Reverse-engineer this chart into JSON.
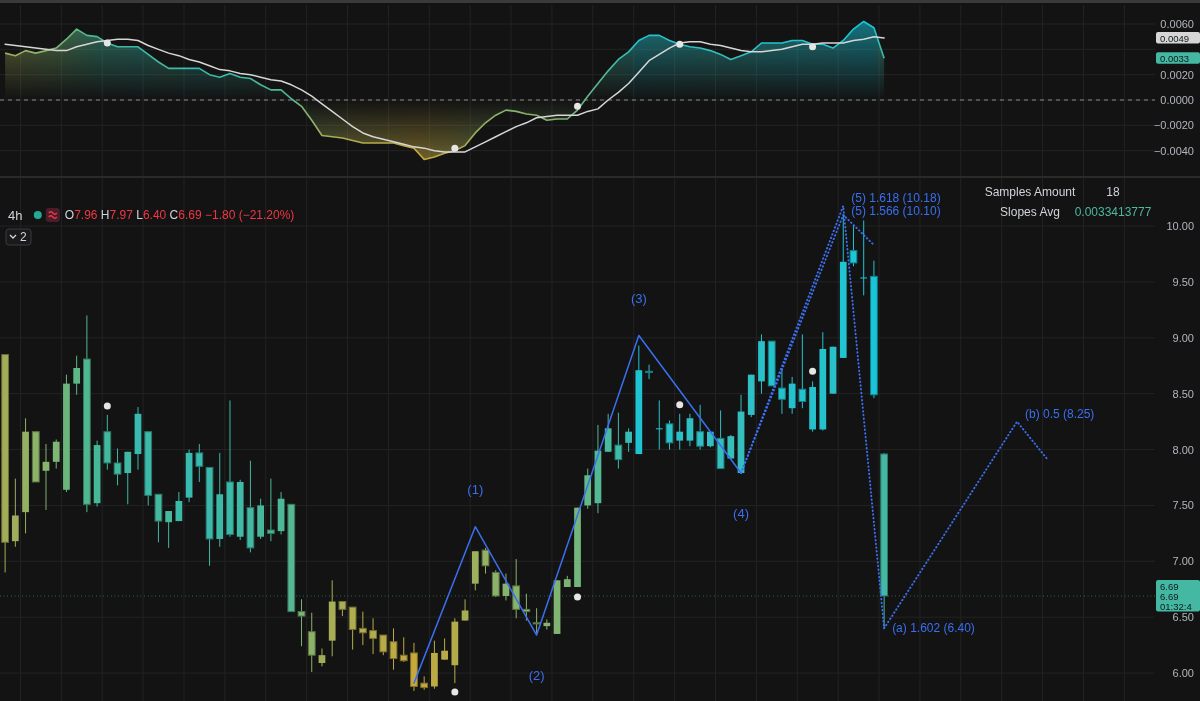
{
  "chart_data": [
    {
      "type": "area",
      "categories": [
        null,
        null,
        null,
        null,
        null,
        null,
        null,
        null,
        null,
        null,
        null,
        null,
        null,
        null,
        null,
        null,
        null,
        null,
        null,
        null,
        null,
        null,
        null,
        null,
        null,
        null,
        null,
        null,
        null,
        null,
        null,
        null,
        null,
        null,
        null,
        null,
        null,
        null,
        null,
        null,
        null,
        null,
        null,
        null,
        null,
        null,
        null,
        null,
        null,
        null,
        null,
        null,
        null,
        null,
        null,
        null,
        null,
        null,
        null,
        null,
        null,
        null,
        null,
        null,
        null,
        null,
        null,
        null,
        null,
        null,
        null,
        null,
        null,
        null,
        null,
        null,
        null,
        null,
        null,
        null,
        null,
        null,
        null,
        null,
        null,
        null,
        null
      ],
      "series": [
        {
          "type": "area",
          "colors": [
            "#a3ad58",
            "#a0ae5c",
            "#94b062",
            "#8cb268",
            "#84b46e",
            "#7cb574",
            "#6cb67e",
            "#5eb886",
            "#50b890",
            "#46b898",
            "#42b89e",
            "#42b8a0",
            "#40b8a4",
            "#38bab0",
            "#3cb9a8",
            "#44b8a0",
            "#46b89e",
            "#3cbaa8",
            "#38bab0",
            "#38bab0",
            "#3cb9aa",
            "#3eb9a8",
            "#3cbaa8",
            "#40b9a6",
            "#44b8a2",
            "#48b89c",
            "#4cb898",
            "#4cb898",
            "#56b792",
            "#7cb474",
            "#8cb168",
            "#a0ae5a",
            "#a6ae58",
            "#acad54",
            "#b0ac50",
            "#b4ab4c",
            "#b4ab4c",
            "#b8aa48",
            "#bcaa44",
            "#c0a942",
            "#c6a83c",
            "#c4a83e",
            "#bcaa44",
            "#b8aa48",
            "#b4ab4c",
            "#a8ad54",
            "#9cb05e",
            "#94b164",
            "#8cb26a",
            "#88b36c",
            "#88b36c",
            "#8cb26a",
            "#8cb26a",
            "#88b36c",
            "#80b472",
            "#7cb476",
            "#74b57c",
            "#64b786",
            "#52b994",
            "#48baa0",
            "#3ebbaa",
            "#36bcb4",
            "#1ec4d2",
            "#26c2cc",
            "#28c1ca",
            "#2ac1c8",
            "#2cc0c6",
            "#2ec0c4",
            "#30bfc2",
            "#32bfc0",
            "#34bebe",
            "#36beba",
            "#34bebe",
            "#2ec0c4",
            "#28c1ca",
            "#26c2cc",
            "#26c2cc",
            "#24c2ce",
            "#24c2ce",
            "#26c2cc",
            "#26c2cc",
            "#28c1ca",
            "#20c4d2",
            "#1ac6d8",
            "#18c6da",
            "#1ac5d8",
            "#44b8a2"
          ],
          "values": [
            0.0037,
            0.0035,
            0.0039,
            0.0037,
            0.0039,
            0.0041,
            0.0048,
            0.0056,
            0.0051,
            0.005,
            0.0045,
            0.0042,
            0.0042,
            0.0042,
            0.0036,
            0.003,
            0.0025,
            0.0025,
            0.0025,
            0.0025,
            0.002,
            0.0018,
            0.0021,
            0.0018,
            0.0017,
            0.0012,
            0.0008,
            0.0008,
            0.0001,
            -0.0005,
            -0.0016,
            -0.0028,
            -0.0029,
            -0.003,
            -0.0032,
            -0.0034,
            -0.0034,
            -0.0034,
            -0.0034,
            -0.0036,
            -0.0038,
            -0.0047,
            -0.0045,
            -0.0042,
            -0.004,
            -0.0036,
            -0.0026,
            -0.0018,
            -0.0012,
            -0.0008,
            -0.0009,
            -0.0011,
            -0.0012,
            -0.0016,
            -0.0015,
            -0.0015,
            -0.0008,
            0.0003,
            0.0013,
            0.0023,
            0.0032,
            0.0038,
            0.0047,
            0.0051,
            0.0051,
            0.0047,
            0.0044,
            0.0042,
            0.0041,
            0.0039,
            0.0036,
            0.0032,
            0.0035,
            0.0038,
            0.0045,
            0.0045,
            0.0045,
            0.0047,
            0.0047,
            0.0044,
            0.0044,
            0.0041,
            0.0047,
            0.0056,
            0.0062,
            0.0057,
            0.0033
          ]
        },
        {
          "type": "line",
          "color": "#d6d6d6",
          "values": [
            0.0044,
            0.0043,
            0.0042,
            0.0041,
            0.004,
            0.0039,
            0.0039,
            0.0042,
            0.0044,
            0.0046,
            0.0047,
            0.0048,
            0.0048,
            0.0047,
            0.0043,
            0.004,
            0.0037,
            0.0035,
            0.0032,
            0.003,
            0.0027,
            0.0024,
            0.0023,
            0.0021,
            0.002,
            0.0018,
            0.0016,
            0.0015,
            0.0012,
            0.0008,
            0.0003,
            -0.0003,
            -0.0009,
            -0.0015,
            -0.0021,
            -0.0026,
            -0.0029,
            -0.0031,
            -0.0033,
            -0.0035,
            -0.0037,
            -0.0038,
            -0.004,
            -0.0041,
            -0.0041,
            -0.0041,
            -0.0037,
            -0.0033,
            -0.0029,
            -0.0025,
            -0.0021,
            -0.0018,
            -0.0014,
            -0.0013,
            -0.0012,
            -0.0012,
            -0.0012,
            -0.0009,
            -0.0007,
            0,
            0.0006,
            0.0013,
            0.0022,
            0.0031,
            0.0036,
            0.0041,
            0.0045,
            0.0046,
            0.0046,
            0.0044,
            0.0043,
            0.0041,
            0.0039,
            0.0038,
            0.0038,
            0.0039,
            0.004,
            0.0042,
            0.0044,
            0.0044,
            0.0045,
            0.0045,
            0.0045,
            0.0047,
            0.0048,
            0.005,
            0.0049
          ]
        },
        {
          "type": "scatter",
          "color": "#e6e6e6",
          "marker": "circle",
          "values": [
            null,
            null,
            null,
            null,
            null,
            null,
            null,
            null,
            null,
            null,
            0.0045,
            null,
            null,
            null,
            null,
            null,
            null,
            null,
            null,
            null,
            null,
            null,
            null,
            null,
            null,
            null,
            null,
            null,
            null,
            null,
            null,
            null,
            null,
            null,
            null,
            null,
            null,
            null,
            null,
            null,
            null,
            null,
            null,
            null,
            -0.0038,
            null,
            null,
            null,
            null,
            null,
            null,
            null,
            null,
            null,
            null,
            null,
            -0.0005,
            null,
            null,
            null,
            null,
            null,
            null,
            null,
            null,
            null,
            0.0044,
            null,
            null,
            null,
            null,
            null,
            null,
            null,
            null,
            null,
            null,
            null,
            null,
            0.0042,
            null,
            null,
            null,
            null,
            null,
            null,
            null
          ]
        }
      ],
      "ylim": [
        -0.006,
        0.0075
      ],
      "yticks": [
        {
          "value": -0.004,
          "label": "−0.0040"
        },
        {
          "value": -0.002,
          "label": "−0.0020"
        },
        {
          "value": 0,
          "label": "0.0000"
        },
        {
          "value": 0.002,
          "label": "0.0020"
        },
        {
          "value": 0.004,
          "label": null
        },
        {
          "value": 0.006,
          "label": "0.0060"
        }
      ],
      "grid": true,
      "tick_labels": "y",
      "ref_lines": [
        {
          "axis": "y",
          "value": 0,
          "color": "#8a8a8a",
          "line_style": "dashed"
        }
      ],
      "annotations": [
        "0.0049",
        "0.0033"
      ]
    },
    {
      "type": "candlestick",
      "title": "4h",
      "subtitle": "O7.96 H7.97 L6.40 C6.69 −1.80 (−21.20%)",
      "categories": [
        null,
        null,
        null,
        null,
        null,
        null,
        null,
        null,
        null,
        null,
        null,
        null,
        null,
        null,
        null,
        null,
        null,
        null,
        null,
        null,
        null,
        null,
        null,
        null,
        null,
        null,
        null,
        null,
        null,
        null,
        null,
        null,
        null,
        null,
        null,
        null,
        null,
        null,
        null,
        null,
        null,
        null,
        null,
        null,
        null,
        null,
        null,
        null,
        null,
        null,
        null,
        null,
        null,
        null,
        null,
        null,
        null,
        null,
        null,
        null,
        null,
        null,
        null,
        null,
        null,
        null,
        null,
        null,
        null,
        null,
        null,
        null,
        null,
        null,
        null,
        null,
        null,
        null,
        null,
        null,
        null,
        null,
        null,
        null,
        null,
        null,
        null,
        null,
        null,
        null,
        null,
        null,
        null,
        null,
        null,
        null,
        null,
        null,
        null,
        null,
        null,
        null,
        null,
        null,
        null,
        null,
        null,
        null,
        null,
        null,
        null,
        null,
        null
      ],
      "ohlc": [
        [
          8.85,
          8.85,
          6.9,
          7.17
        ],
        [
          7.18,
          7.74,
          7.13,
          7.41
        ],
        [
          7.44,
          8.28,
          7.25,
          8.16
        ],
        [
          8.16,
          8.16,
          7.71,
          7.71
        ],
        [
          7.81,
          8.05,
          7.46,
          7.89
        ],
        [
          7.89,
          8.09,
          7.83,
          8.07
        ],
        [
          7.64,
          8.67,
          7.62,
          8.59
        ],
        [
          8.59,
          8.84,
          8.49,
          8.73
        ],
        [
          8.81,
          9.2,
          7.44,
          7.51
        ],
        [
          7.52,
          8.08,
          7.49,
          8.04
        ],
        [
          8.16,
          8.31,
          7.82,
          7.88
        ],
        [
          7.88,
          8.01,
          7.68,
          7.78
        ],
        [
          7.79,
          7.98,
          7.51,
          7.98
        ],
        [
          7.96,
          8.38,
          7.82,
          8.32
        ],
        [
          8.16,
          8.16,
          7.5,
          7.59
        ],
        [
          7.6,
          7.6,
          7.17,
          7.36
        ],
        [
          7.35,
          7.45,
          7.12,
          7.45
        ],
        [
          7.36,
          7.62,
          7.36,
          7.54
        ],
        [
          7.57,
          8.0,
          7.53,
          7.97
        ],
        [
          7.97,
          8.05,
          7.71,
          7.85
        ],
        [
          7.84,
          7.84,
          6.96,
          7.2
        ],
        [
          7.2,
          7.97,
          7.13,
          7.6
        ],
        [
          7.71,
          8.44,
          7.22,
          7.24
        ],
        [
          7.22,
          7.73,
          7.19,
          7.71
        ],
        [
          7.48,
          7.9,
          7.08,
          7.12
        ],
        [
          7.22,
          7.56,
          7.2,
          7.5
        ],
        [
          7.28,
          7.74,
          7.18,
          7.25
        ],
        [
          7.27,
          7.62,
          7.24,
          7.56
        ],
        [
          7.51,
          7.51,
          6.55,
          6.55
        ],
        [
          6.55,
          6.66,
          6.24,
          6.51
        ],
        [
          6.37,
          6.54,
          6.01,
          6.16
        ],
        [
          6.09,
          6.22,
          6.06,
          6.16
        ],
        [
          6.29,
          6.83,
          6.15,
          6.64
        ],
        [
          6.64,
          6.64,
          6.51,
          6.57
        ],
        [
          6.59,
          6.59,
          6.21,
          6.39
        ],
        [
          6.4,
          6.55,
          6.25,
          6.36
        ],
        [
          6.38,
          6.49,
          6.17,
          6.31
        ],
        [
          6.34,
          6.34,
          6.16,
          6.19
        ],
        [
          6.28,
          6.4,
          6.03,
          6.13
        ],
        [
          6.16,
          6.32,
          6.1,
          6.11
        ],
        [
          6.18,
          6.27,
          5.84,
          5.88
        ],
        [
          5.91,
          5.97,
          5.85,
          5.87
        ],
        [
          5.88,
          6.29,
          5.86,
          6.18
        ],
        [
          6.12,
          6.31,
          6.12,
          6.2
        ],
        [
          6.07,
          6.49,
          5.91,
          6.46
        ],
        [
          6.47,
          6.66,
          6.47,
          6.56
        ],
        [
          6.8,
          7.09,
          6.74,
          7.09
        ],
        [
          7.1,
          7.12,
          6.89,
          6.96
        ],
        [
          6.9,
          6.92,
          6.68,
          6.69
        ],
        [
          6.69,
          6.89,
          6.65,
          6.8
        ],
        [
          6.78,
          7.02,
          6.49,
          6.57
        ],
        [
          6.57,
          6.71,
          6.47,
          6.55
        ],
        [
          6.45,
          6.58,
          6.36,
          6.44
        ],
        [
          6.42,
          6.48,
          6.39,
          6.45
        ],
        [
          6.35,
          6.83,
          6.35,
          6.83
        ],
        [
          6.77,
          6.87,
          6.77,
          6.84
        ],
        [
          6.77,
          7.48,
          6.77,
          7.48
        ],
        [
          7.5,
          7.83,
          7.47,
          7.77
        ],
        [
          7.52,
          8.22,
          7.43,
          7.99
        ],
        [
          7.98,
          8.32,
          7.98,
          8.19
        ],
        [
          8.04,
          8.33,
          7.83,
          7.91
        ],
        [
          8.06,
          8.19,
          7.98,
          8.16
        ],
        [
          7.96,
          8.93,
          7.96,
          8.71
        ],
        [
          8.7,
          8.76,
          8.63,
          8.69
        ],
        [
          8.19,
          8.44,
          8.0,
          8.19
        ],
        [
          8.23,
          8.26,
          8.0,
          8.06
        ],
        [
          8.08,
          8.32,
          8.0,
          8.16
        ],
        [
          8.08,
          8.32,
          8.03,
          8.28
        ],
        [
          8.16,
          8.4,
          8.0,
          8.03
        ],
        [
          8.03,
          8.16,
          8.02,
          8.16
        ],
        [
          8.1,
          8.35,
          7.83,
          7.83
        ],
        [
          7.92,
          8.13,
          7.92,
          8.12
        ],
        [
          7.79,
          8.49,
          7.79,
          8.34
        ],
        [
          8.31,
          8.67,
          8.29,
          8.67
        ],
        [
          8.61,
          9.03,
          8.5,
          8.97
        ],
        [
          8.97,
          8.97,
          8.57,
          8.57
        ],
        [
          8.55,
          8.73,
          8.32,
          8.45
        ],
        [
          8.37,
          8.65,
          8.32,
          8.59
        ],
        [
          8.54,
          9.03,
          8.37,
          8.43
        ],
        [
          8.18,
          8.61,
          8.16,
          8.56
        ],
        [
          8.18,
          9.05,
          8.17,
          8.9
        ],
        [
          8.5,
          8.92,
          8.5,
          8.92
        ],
        [
          8.82,
          10.1,
          8.82,
          9.68
        ],
        [
          9.78,
          10.01,
          9.64,
          9.67
        ],
        [
          9.54,
          10.05,
          9.38,
          9.54
        ],
        [
          9.55,
          9.69,
          8.46,
          8.49
        ],
        [
          7.96,
          7.97,
          6.4,
          6.69
        ],
        null,
        null,
        null,
        null,
        null,
        null,
        null,
        null,
        null,
        null,
        null,
        null,
        null,
        null,
        null,
        null,
        null,
        null,
        null,
        null,
        null,
        null,
        null,
        null,
        null,
        null
      ],
      "colors": [
        "#a3ad58",
        "#a0ae5c",
        "#94b062",
        "#8cb268",
        "#84b46e",
        "#7cb574",
        "#6cb67e",
        "#5eb886",
        "#50b890",
        "#46b898",
        "#42b89e",
        "#42b8a0",
        "#40b8a4",
        "#38bab0",
        "#3cb9a8",
        "#44b8a0",
        "#46b89e",
        "#3cbaa8",
        "#38bab0",
        "#38bab0",
        "#3cb9aa",
        "#3eb9a8",
        "#3cbaa8",
        "#40b9a6",
        "#44b8a2",
        "#48b89c",
        "#4cb898",
        "#4cb898",
        "#56b792",
        "#7cb474",
        "#8cb168",
        "#a0ae5a",
        "#a6ae58",
        "#acad54",
        "#b0ac50",
        "#b4ab4c",
        "#b4ab4c",
        "#b8aa48",
        "#bcaa44",
        "#c0a942",
        "#c6a83c",
        "#c4a83e",
        "#bcaa44",
        "#b8aa48",
        "#b4ab4c",
        "#a8ad54",
        "#9cb05e",
        "#94b164",
        "#8cb26a",
        "#88b36c",
        "#88b36c",
        "#8cb26a",
        "#8cb26a",
        "#88b36c",
        "#80b472",
        "#7cb476",
        "#74b57c",
        "#64b786",
        "#52b994",
        "#48baa0",
        "#3ebbaa",
        "#36bcb4",
        "#1ec4d2",
        "#26c2cc",
        "#28c1ca",
        "#2ac1c8",
        "#2cc0c6",
        "#2ec0c4",
        "#30bfc2",
        "#32bfc0",
        "#34bebe",
        "#36beba",
        "#34bebe",
        "#2ec0c4",
        "#28c1ca",
        "#26c2cc",
        "#26c2cc",
        "#24c2ce",
        "#24c2ce",
        "#26c2cc",
        "#26c2cc",
        "#28c1ca",
        "#20c4d2",
        "#1ac6d8",
        "#18c6da",
        "#1ac5d8",
        "#44b8a2",
        null,
        null,
        null,
        null,
        null,
        null,
        null,
        null,
        null,
        null,
        null,
        null,
        null,
        null,
        null,
        null,
        null,
        null,
        null,
        null,
        null,
        null,
        null,
        null,
        null,
        null
      ],
      "series": [
        {
          "type": "line",
          "color": "#3a6ff0",
          "line_style": "solid",
          "values": [
            null,
            null,
            null,
            null,
            null,
            null,
            null,
            null,
            null,
            null,
            null,
            null,
            null,
            null,
            null,
            null,
            null,
            null,
            null,
            null,
            null,
            null,
            null,
            null,
            null,
            null,
            null,
            null,
            null,
            null,
            null,
            null,
            null,
            null,
            null,
            null,
            null,
            null,
            null,
            null,
            5.91,
            null,
            null,
            null,
            null,
            null,
            7.31,
            null,
            null,
            null,
            null,
            null,
            6.34,
            null,
            null,
            null,
            null,
            null,
            null,
            null,
            null,
            null,
            9.02,
            null,
            null,
            null,
            null,
            null,
            null,
            null,
            null,
            null,
            7.79,
            null,
            null,
            null,
            null,
            null,
            null,
            null,
            null,
            null,
            null,
            null,
            null,
            null,
            null,
            null,
            null,
            null,
            null,
            null,
            null,
            null,
            null,
            null,
            null,
            null,
            null,
            null,
            null,
            null,
            null,
            null,
            null,
            null,
            null,
            null,
            null,
            null,
            null,
            null,
            null
          ]
        },
        {
          "type": "line",
          "color": "#3a6ff0",
          "line_style": "dotted",
          "values": [
            null,
            null,
            null,
            null,
            null,
            null,
            null,
            null,
            null,
            null,
            null,
            null,
            null,
            null,
            null,
            null,
            null,
            null,
            null,
            null,
            null,
            null,
            null,
            null,
            null,
            null,
            null,
            null,
            null,
            null,
            null,
            null,
            null,
            null,
            null,
            null,
            null,
            null,
            null,
            null,
            null,
            null,
            null,
            null,
            null,
            null,
            null,
            null,
            null,
            null,
            null,
            null,
            null,
            null,
            null,
            null,
            null,
            null,
            null,
            null,
            null,
            null,
            null,
            null,
            null,
            null,
            null,
            null,
            null,
            null,
            null,
            null,
            7.79,
            null,
            null,
            null,
            null,
            null,
            null,
            null,
            null,
            null,
            10.18,
            null,
            null,
            null,
            6.4,
            null,
            null,
            null,
            null,
            null,
            null,
            null,
            null,
            null,
            null,
            null,
            null,
            8.25,
            null,
            null,
            7.91,
            null,
            null,
            null,
            null,
            null,
            null,
            null,
            null,
            null,
            null
          ],
          "value_labels": [
            null,
            null,
            null,
            null,
            null,
            null,
            null,
            null,
            null,
            null,
            null,
            null,
            null,
            null,
            null,
            null,
            null,
            null,
            null,
            null,
            null,
            null,
            null,
            null,
            null,
            null,
            null,
            null,
            null,
            null,
            null,
            null,
            null,
            null,
            null,
            null,
            null,
            null,
            null,
            null,
            null,
            null,
            null,
            null,
            null,
            null,
            null,
            null,
            null,
            null,
            null,
            null,
            null,
            null,
            null,
            null,
            null,
            null,
            null,
            null,
            null,
            null,
            null,
            null,
            null,
            null,
            null,
            null,
            null,
            null,
            null,
            null,
            null,
            null,
            null,
            null,
            null,
            null,
            null,
            null,
            null,
            null,
            "(5) 1.618 (10.18)",
            null,
            null,
            null,
            "(a) 1.602 (6.40)",
            null,
            null,
            null,
            null,
            null,
            null,
            null,
            null,
            null,
            null,
            null,
            null,
            "(b) 0.5 (8.25)",
            null,
            null,
            null,
            null,
            null,
            null,
            null,
            null,
            null,
            null,
            null,
            null,
            null
          ]
        },
        {
          "type": "line",
          "color": "#3a6ff0",
          "line_style": "dotted",
          "values": [
            null,
            null,
            null,
            null,
            null,
            null,
            null,
            null,
            null,
            null,
            null,
            null,
            null,
            null,
            null,
            null,
            null,
            null,
            null,
            null,
            null,
            null,
            null,
            null,
            null,
            null,
            null,
            null,
            null,
            null,
            null,
            null,
            null,
            null,
            null,
            null,
            null,
            null,
            null,
            null,
            null,
            null,
            null,
            null,
            null,
            null,
            null,
            null,
            null,
            null,
            null,
            null,
            null,
            null,
            null,
            null,
            null,
            null,
            null,
            null,
            null,
            null,
            null,
            null,
            null,
            null,
            null,
            null,
            null,
            null,
            null,
            null,
            7.79,
            null,
            null,
            null,
            null,
            null,
            null,
            null,
            null,
            null,
            10.1,
            null,
            null,
            9.83,
            null,
            null,
            null,
            null,
            null,
            null,
            null,
            null,
            null,
            null,
            null,
            null,
            null,
            null,
            null,
            null,
            null,
            null,
            null,
            null,
            null,
            null,
            null,
            null,
            null,
            null,
            null
          ],
          "value_labels": [
            null,
            null,
            null,
            null,
            null,
            null,
            null,
            null,
            null,
            null,
            null,
            null,
            null,
            null,
            null,
            null,
            null,
            null,
            null,
            null,
            null,
            null,
            null,
            null,
            null,
            null,
            null,
            null,
            null,
            null,
            null,
            null,
            null,
            null,
            null,
            null,
            null,
            null,
            null,
            null,
            null,
            null,
            null,
            null,
            null,
            null,
            null,
            null,
            null,
            null,
            null,
            null,
            null,
            null,
            null,
            null,
            null,
            null,
            null,
            null,
            null,
            null,
            null,
            null,
            null,
            null,
            null,
            null,
            null,
            null,
            null,
            null,
            null,
            null,
            null,
            null,
            null,
            null,
            null,
            null,
            null,
            null,
            "(5) 1.566 (10.10)",
            null,
            null,
            null,
            null,
            null,
            null,
            null,
            null,
            null,
            null,
            null,
            null,
            null,
            null,
            null,
            null,
            null,
            null,
            null,
            null,
            null,
            null,
            null,
            null,
            null,
            null,
            null,
            null,
            null,
            null
          ]
        },
        {
          "type": "scatter",
          "color": "#e6e6e6",
          "marker": "circle",
          "values": [
            null,
            null,
            null,
            null,
            null,
            null,
            null,
            null,
            null,
            null,
            8.39,
            null,
            null,
            null,
            null,
            null,
            null,
            null,
            null,
            null,
            null,
            null,
            null,
            null,
            null,
            null,
            null,
            null,
            null,
            null,
            null,
            null,
            null,
            null,
            null,
            null,
            null,
            null,
            null,
            null,
            null,
            null,
            null,
            null,
            5.83,
            null,
            null,
            null,
            null,
            null,
            null,
            null,
            null,
            null,
            null,
            null,
            6.68,
            null,
            null,
            null,
            null,
            null,
            null,
            null,
            null,
            null,
            8.4,
            null,
            null,
            null,
            null,
            null,
            null,
            null,
            null,
            null,
            null,
            null,
            null,
            8.7,
            null,
            null,
            null,
            null,
            null,
            null,
            null,
            null,
            null,
            null,
            null,
            null,
            null,
            null,
            null,
            null,
            null,
            null,
            null,
            null,
            null,
            null,
            null,
            null,
            null,
            null,
            null,
            null,
            null,
            null,
            null,
            null,
            null
          ]
        }
      ],
      "ylim": [
        5.75,
        10.43
      ],
      "yticks": [
        {
          "value": 6,
          "label": "6.00"
        },
        {
          "value": 6.5,
          "label": "6.50"
        },
        {
          "value": 7,
          "label": "7.00"
        },
        {
          "value": 7.5,
          "label": "7.50"
        },
        {
          "value": 8,
          "label": "8.00"
        },
        {
          "value": 8.5,
          "label": "8.50"
        },
        {
          "value": 9,
          "label": "9.00"
        },
        {
          "value": 9.5,
          "label": "9.50"
        },
        {
          "value": 10,
          "label": "10.00"
        }
      ],
      "grid": true,
      "tick_labels": "y",
      "ref_lines": [
        {
          "axis": "y",
          "value": 6.69,
          "color": "#4cb8a0",
          "line_style": "dotted"
        }
      ],
      "annotations": [
        "2",
        "Samples Amount",
        "18",
        "Slopes Avg",
        "0.0033413777",
        "(1)",
        "(2)",
        "(3)",
        "(4)",
        "6.69",
        "6.69",
        "01:32:4"
      ]
    }
  ]
}
